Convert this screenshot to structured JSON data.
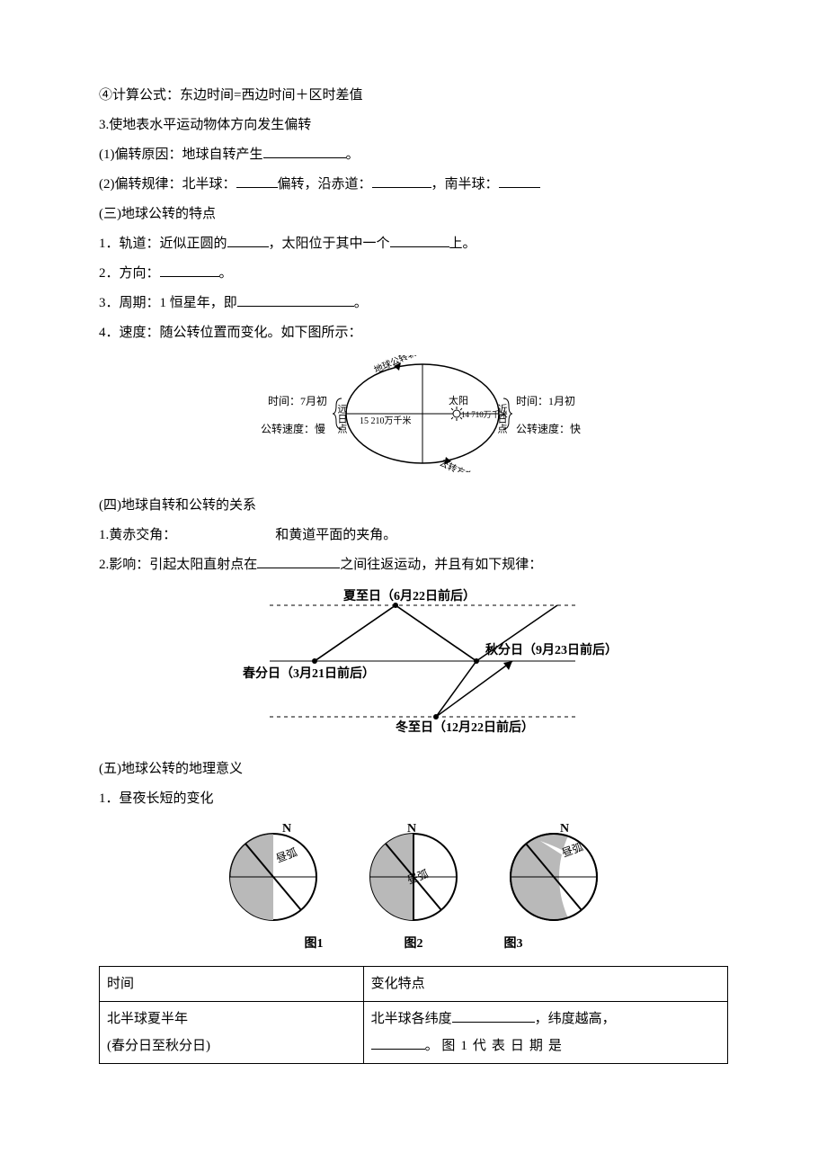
{
  "lines": {
    "l1": "④计算公式：东边时间=西边时间＋区时差值",
    "l2": "3.使地表水平运动物体方向发生偏转",
    "l3a": "(1)偏转原因：地球自转产生",
    "l3b": "。",
    "l4a": "(2)偏转规律：北半球：",
    "l4b": "偏转，沿赤道：",
    "l4c": "，南半球：",
    "l5": "(三)地球公转的特点",
    "l6a": "1．轨道：近似正圆的",
    "l6b": "，太阳位于其中一个",
    "l6c": "上。",
    "l7a": "2．方向：",
    "l7b": "。",
    "l8a": "3．周期：1 恒星年，即",
    "l8b": "。",
    "l9": "4．速度：随公转位置而变化。如下图所示：",
    "l10": "(四)地球自转和公转的关系",
    "l11a": "1.黄赤交角：",
    "l11b": "和黄道平面的夹角。",
    "l12a": "2.影响：引起太阳直射点在",
    "l12b": "之间往返运动，并且有如下规律：",
    "l13": "(五)地球公转的地理意义",
    "l14": "1．昼夜长短的变化"
  },
  "orbit": {
    "left_time": "时间：7月初",
    "left_speed": "公转速度：慢",
    "left_point": "远日点",
    "right_time": "时间：1月初",
    "right_speed": "公转速度：快",
    "right_point": "近日点",
    "sun": "太阳",
    "dist_far": "15 210万千米",
    "dist_near": "14 710万千米",
    "path_label": "地球公转轨道",
    "direction": "公转方向"
  },
  "solstice": {
    "summer": "夏至日（6月22日前后）",
    "autumn": "秋分日（9月23日前后）",
    "spring": "春分日（3月21日前后）",
    "winter": "冬至日（12月22日前后）"
  },
  "globes": {
    "n": "N",
    "arc": "昼弧",
    "cap1": "图1",
    "cap2": "图2",
    "cap3": "图3"
  },
  "table": {
    "h1": "时间",
    "h2": "变化特点",
    "r1c1a": "北半球夏半年",
    "r1c1b": "(春分日至秋分日)",
    "r1c2a": "北半球各纬度",
    "r1c2b": "，纬度越高，",
    "r1c2c": "。",
    "r1c2d": "图1代表日期是"
  },
  "style": {
    "blank_short": 46,
    "blank_med": 66,
    "blank_long": 92,
    "blank_xlong": 130
  }
}
